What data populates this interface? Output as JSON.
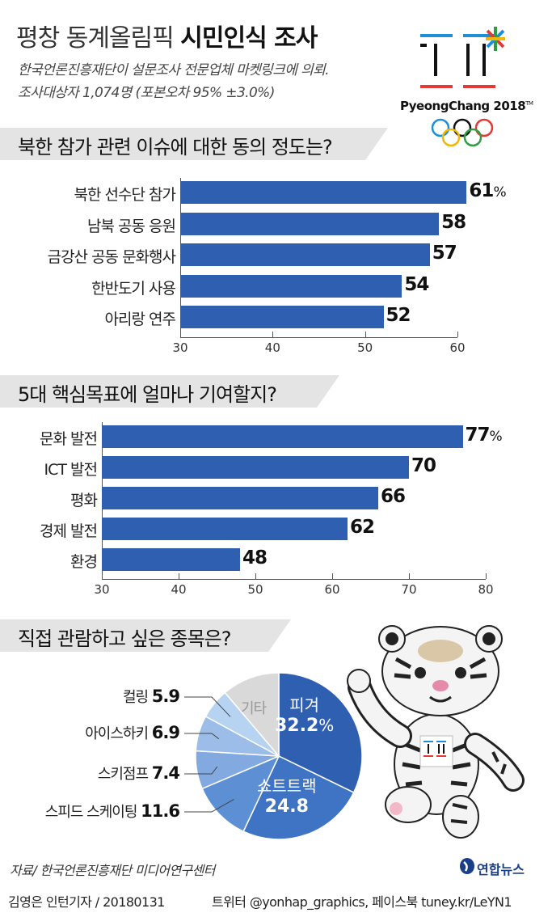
{
  "header": {
    "title_normal": "평창 동계올림픽",
    "title_bold": "시민인식 조사",
    "subtitle_line1": "한국언론진흥재단이 설문조사 전문업체 마켓링크에 의뢰.",
    "subtitle_line2": "조사대상자 1,074명 (포본오차 95% ±3.0%)"
  },
  "logo": {
    "text": "PyeongChang 2018",
    "tm": "TM"
  },
  "colors": {
    "bar": "#2f5fb0",
    "header_bg": "#e4e4e4"
  },
  "chart_data": [
    {
      "type": "bar",
      "title": "북한 참가 관련 이슈에 대한 동의 정도는?",
      "categories": [
        "북한 선수단 참가",
        "남북 공동 응원",
        "금강산 공동 문화행사",
        "한반도기 사용",
        "아리랑 연주"
      ],
      "values": [
        61,
        58,
        57,
        54,
        52
      ],
      "first_suffix": "%",
      "xlim": [
        30,
        60
      ],
      "ticks": [
        "30",
        "40",
        "50",
        "60"
      ]
    },
    {
      "type": "bar",
      "title": "5대 핵심목표에 얼마나 기여할지?",
      "categories": [
        "문화 발전",
        "ICT 발전",
        "평화",
        "경제 발전",
        "환경"
      ],
      "values": [
        77,
        70,
        66,
        62,
        48
      ],
      "first_suffix": "%",
      "xlim": [
        30,
        80
      ],
      "ticks": [
        "30",
        "40",
        "50",
        "60",
        "70",
        "80"
      ]
    },
    {
      "type": "pie",
      "title": "직접 관람하고 싶은 종목은?",
      "slices": [
        {
          "name": "피겨",
          "value": 32.2,
          "display": "32.2",
          "suffix": "%",
          "color": "#2f5fb0"
        },
        {
          "name": "쇼트트랙",
          "value": 24.8,
          "display": "24.8",
          "suffix": "",
          "color": "#3f74c4"
        },
        {
          "name": "스피드 스케이팅",
          "value": 11.6,
          "display": "11.6",
          "suffix": "",
          "color": "#5d8fd4"
        },
        {
          "name": "스키점프",
          "value": 7.4,
          "display": "7.4",
          "suffix": "",
          "color": "#82a9e0"
        },
        {
          "name": "아이스하키",
          "value": 6.9,
          "display": "6.9",
          "suffix": "",
          "color": "#9cbde8"
        },
        {
          "name": "컬링",
          "value": 5.9,
          "display": "5.9",
          "suffix": "",
          "color": "#b6d3f2"
        },
        {
          "name": "기타",
          "value": 11.2,
          "display": "",
          "suffix": "",
          "color": "#d9d9d9"
        }
      ]
    }
  ],
  "source": "자료/ 한국언론진흥재단 미디어연구센터",
  "footer": {
    "left": "김영은 인턴기자 / 20180131",
    "right": "트위터 @yonhap_graphics, 페이스북 tuney.kr/LeYN1",
    "brand": "연합뉴스"
  }
}
